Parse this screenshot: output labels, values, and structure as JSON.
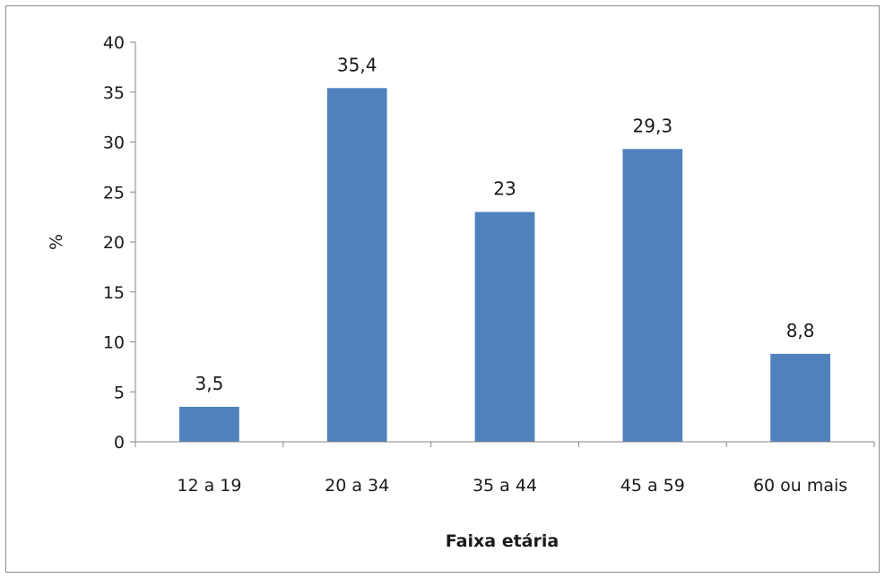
{
  "chart_data": {
    "type": "bar",
    "categories": [
      "12 a 19",
      "20 a 34",
      "35 a 44",
      "45 a 59",
      "60 ou mais"
    ],
    "values": [
      3.5,
      35.4,
      23,
      29.3,
      8.8
    ],
    "data_labels": [
      "3,5",
      "35,4",
      "23",
      "29,3",
      "8,8"
    ],
    "y_ticks": [
      0,
      5,
      10,
      15,
      20,
      25,
      30,
      35,
      40
    ],
    "ylim": [
      0,
      40
    ],
    "xlabel": "Faixa etária",
    "ylabel": "%",
    "title": "",
    "grid": false,
    "legend": "none",
    "bar_color": "#4f81bd"
  }
}
